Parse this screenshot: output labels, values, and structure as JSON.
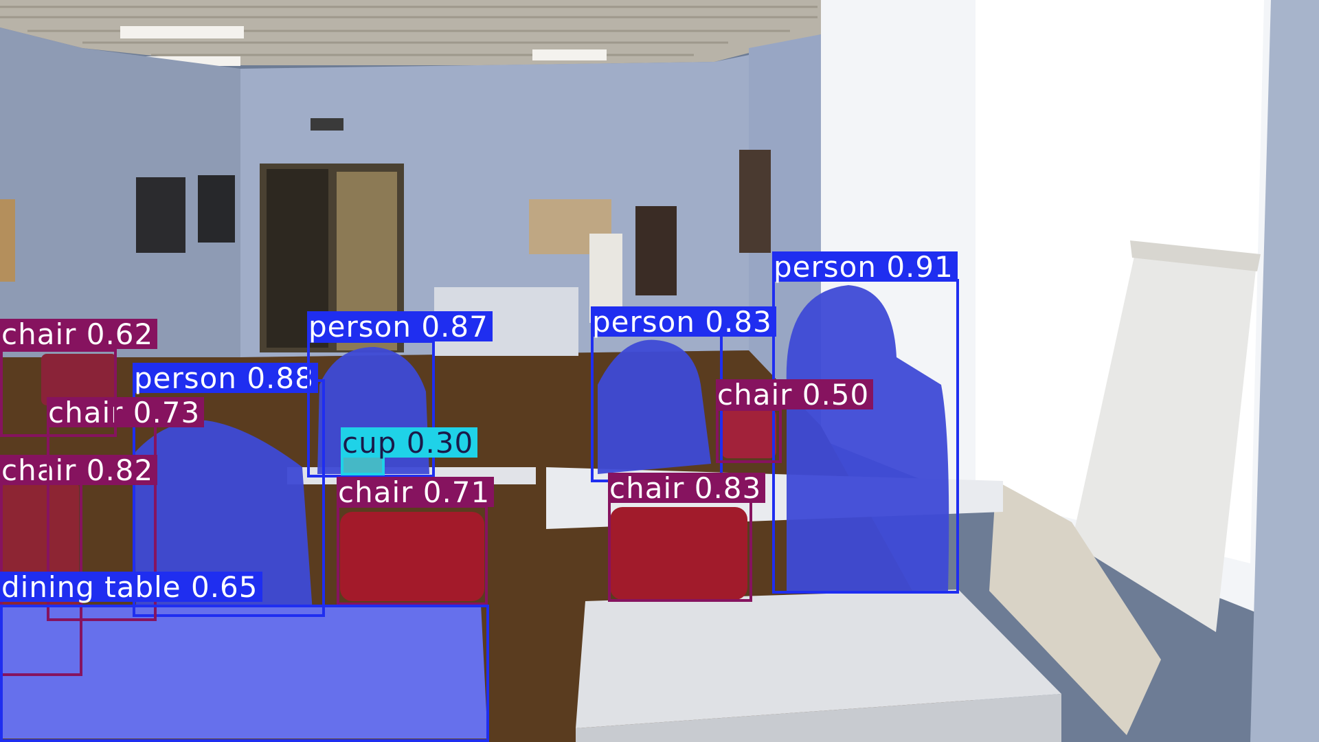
{
  "detections": [
    {
      "class": "person",
      "label": "person 0.91",
      "score": 0.91
    },
    {
      "class": "person",
      "label": "person 0.88",
      "score": 0.88
    },
    {
      "class": "person",
      "label": "person 0.87",
      "score": 0.87
    },
    {
      "class": "person",
      "label": "person 0.83",
      "score": 0.83
    },
    {
      "class": "chair",
      "label": "chair 0.83",
      "score": 0.83
    },
    {
      "class": "chair",
      "label": "chair 0.82",
      "score": 0.82
    },
    {
      "class": "chair",
      "label": "chair 0.73",
      "score": 0.73
    },
    {
      "class": "chair",
      "label": "chair 0.71",
      "score": 0.71
    },
    {
      "class": "dining table",
      "label": "dining table 0.65",
      "score": 0.65
    },
    {
      "class": "chair",
      "label": "chair 0.62",
      "score": 0.62
    },
    {
      "class": "chair",
      "label": "chair 0.50",
      "score": 0.5
    },
    {
      "class": "cup",
      "label": "cup 0.30",
      "score": 0.3
    }
  ],
  "colors": {
    "person": "#1f2ef0",
    "chair": "#86135f",
    "dining_table": "#1f2ef0",
    "cup": "#1fd2e8"
  }
}
